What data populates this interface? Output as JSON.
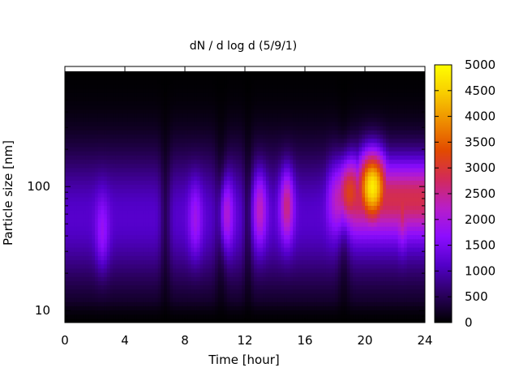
{
  "chart_data": {
    "type": "heatmap",
    "title": "dN / d log d (5/9/1)",
    "xlabel": "Time [hour]",
    "ylabel": "Particle size [nm]",
    "x_range": [
      0,
      24
    ],
    "x_ticks": [
      "0",
      "4",
      "8",
      "12",
      "16",
      "20",
      "24"
    ],
    "y_scale": "log",
    "y_range": [
      8,
      850
    ],
    "y_ticks": [
      "10",
      "100"
    ],
    "colorbar": {
      "range": [
        0,
        5000
      ],
      "ticks": [
        "0",
        "500",
        "1000",
        "1500",
        "2000",
        "2500",
        "3000",
        "3500",
        "4000",
        "4500",
        "5000"
      ],
      "palette": [
        "#000000",
        "#2b0060",
        "#5200c8",
        "#8c0dff",
        "#b81ec8",
        "#d22a5a",
        "#e24a00",
        "#ee8c00",
        "#f8cc00",
        "#ffff00"
      ]
    },
    "features": [
      {
        "time_hour": 20.5,
        "size_nm": 100,
        "peak_dN_dlogd": 4800
      },
      {
        "time_hour": 19.0,
        "size_nm": 90,
        "peak_dN_dlogd": 3200
      },
      {
        "time_hour": 22.5,
        "size_nm": 70,
        "peak_dN_dlogd": 2900
      },
      {
        "time_hour": 14.8,
        "size_nm": 70,
        "peak_dN_dlogd": 2600
      },
      {
        "time_hour": 13.0,
        "size_nm": 65,
        "peak_dN_dlogd": 2300
      },
      {
        "time_hour": 10.8,
        "size_nm": 60,
        "peak_dN_dlogd": 2100
      },
      {
        "time_hour": 8.7,
        "size_nm": 55,
        "peak_dN_dlogd": 1900
      },
      {
        "time_hour": 2.5,
        "size_nm": 45,
        "peak_dN_dlogd": 1800
      }
    ]
  }
}
